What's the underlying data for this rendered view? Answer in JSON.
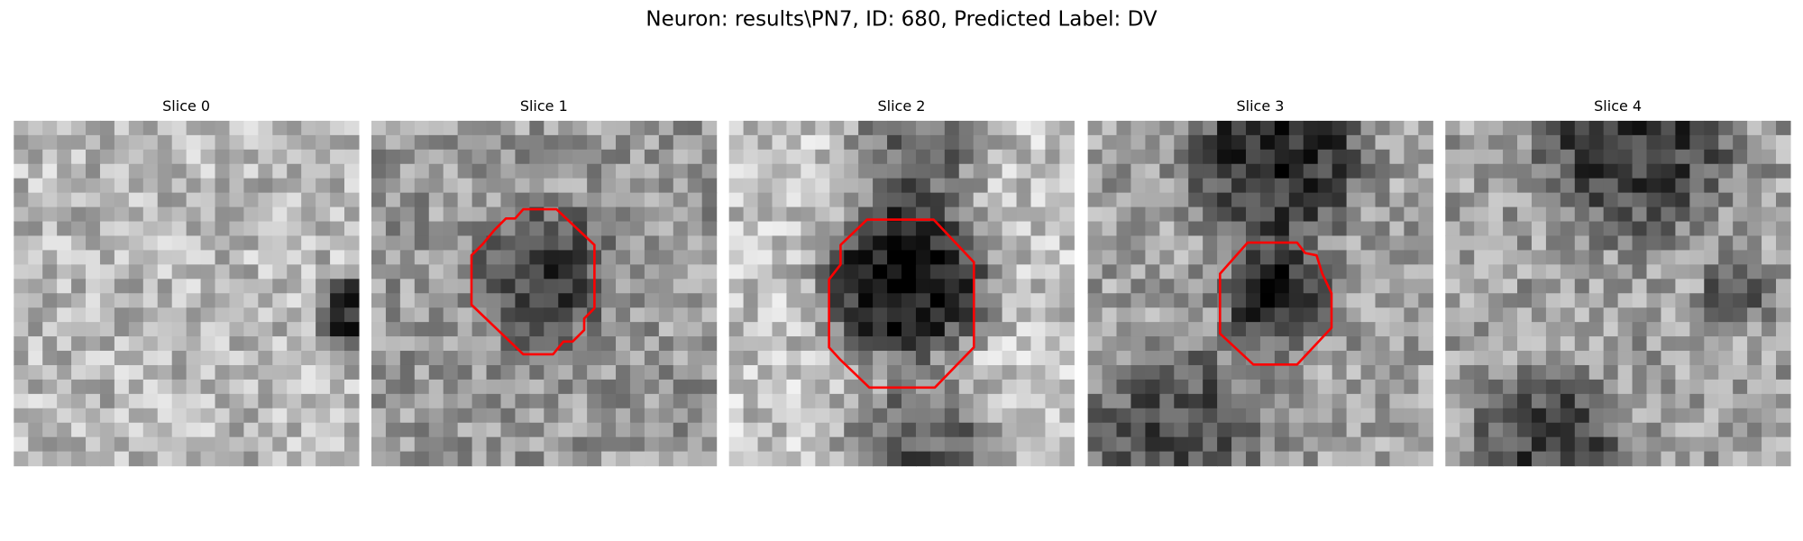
{
  "figure": {
    "title": "Neuron: results\\PN7, ID: 680, Predicted Label: DV",
    "panels": [
      {
        "title": "Slice 0"
      },
      {
        "title": "Slice 1"
      },
      {
        "title": "Slice 2"
      },
      {
        "title": "Slice 3"
      },
      {
        "title": "Slice 4"
      }
    ]
  }
}
